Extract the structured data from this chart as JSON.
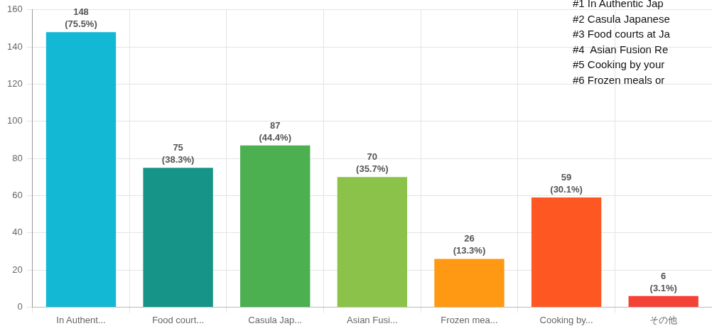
{
  "chart_data": {
    "type": "bar",
    "categories": [
      "In Authent...",
      "Food court...",
      "Casula Jap...",
      "Asian Fusi...",
      "Frozen mea...",
      "Cooking by...",
      "その他"
    ],
    "values": [
      148,
      75,
      87,
      70,
      26,
      59,
      6
    ],
    "colors": [
      "#12b8d4",
      "#169488",
      "#4caf50",
      "#8bc34a",
      "#ff9812",
      "#ff5722",
      "#f44336"
    ],
    "value_labels": [
      "148 (75.5%)",
      "75 (38.3%)",
      "87 (44.4%)",
      "70 (35.7%)",
      "26 (13.3%)",
      "59 (30.1%)",
      "6 (3.1%)"
    ],
    "ylim": [
      0,
      160
    ],
    "yticks": [
      0,
      20,
      40,
      60,
      80,
      100,
      120,
      140,
      160
    ],
    "grid": true,
    "legend": false,
    "annotations": [
      "#1 In Authentic Jap",
      "#2 Casula Japanese",
      "#3 Food courts at Ja",
      "#4  Asian Fusion Re",
      "#5 Cooking by your",
      "#6 Frozen meals or"
    ]
  }
}
